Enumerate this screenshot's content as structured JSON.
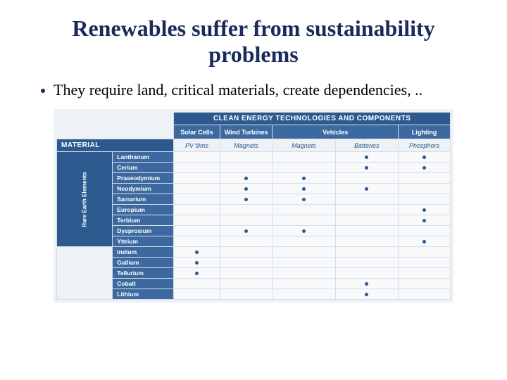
{
  "title": "Renewables suffer from sustainability problems",
  "bullet": "They require land, critical materials, create dependencies, ..",
  "table": {
    "header_top": "CLEAN ENERGY TECHNOLOGIES AND COMPONENTS",
    "col_headers": [
      "Solar Cells",
      "Wind Turbines",
      "Vehicles",
      "Lighting"
    ],
    "col_subheaders": [
      "PV films",
      "Magnets",
      "Magnets",
      "Batteries",
      "Phosphors"
    ],
    "material_label": "MATERIAL",
    "group_label": "Rare Earth Elements",
    "rows": [
      {
        "name": "Lanthanum",
        "vals": [
          0,
          0,
          0,
          1,
          1
        ]
      },
      {
        "name": "Cerium",
        "vals": [
          0,
          0,
          0,
          1,
          1
        ]
      },
      {
        "name": "Praseodymium",
        "vals": [
          0,
          1,
          1,
          0,
          0
        ]
      },
      {
        "name": "Neodymium",
        "vals": [
          0,
          1,
          1,
          1,
          0
        ]
      },
      {
        "name": "Samarium",
        "vals": [
          0,
          1,
          1,
          0,
          0
        ]
      },
      {
        "name": "Europium",
        "vals": [
          0,
          0,
          0,
          0,
          1
        ]
      },
      {
        "name": "Terbium",
        "vals": [
          0,
          0,
          0,
          0,
          1
        ]
      },
      {
        "name": "Dysprosium",
        "vals": [
          0,
          1,
          1,
          0,
          0
        ]
      },
      {
        "name": "Yttrium",
        "vals": [
          0,
          0,
          0,
          0,
          1
        ]
      },
      {
        "name": "Indium",
        "vals": [
          1,
          0,
          0,
          0,
          0
        ]
      },
      {
        "name": "Gallium",
        "vals": [
          1,
          0,
          0,
          0,
          0
        ]
      },
      {
        "name": "Tellurium",
        "vals": [
          1,
          0,
          0,
          0,
          0
        ]
      },
      {
        "name": "Cobalt",
        "vals": [
          0,
          0,
          0,
          1,
          0
        ]
      },
      {
        "name": "Lithium",
        "vals": [
          0,
          0,
          0,
          1,
          0
        ]
      }
    ],
    "group_end_index": 9,
    "col_widths": {
      "group": 16,
      "label": 90,
      "c0": 74,
      "c1": 82,
      "c2": 100,
      "c3": 100,
      "c4": 80
    },
    "colors": {
      "header_dark": "#2c5a8f",
      "header_mid": "#3c6aa0",
      "bg_light": "#eef2f6",
      "cell_bg": "#f7f9fb",
      "border": "#d8dee6",
      "title": "#1b2a5a"
    }
  }
}
